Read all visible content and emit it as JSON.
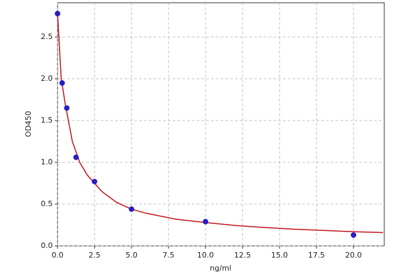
{
  "chart_data": {
    "type": "scatter",
    "x_label": "ng/ml",
    "y_label": "OD450",
    "xlim": [
      0,
      22.08
    ],
    "ylim": [
      0,
      2.91
    ],
    "xticks": [
      {
        "value": 0,
        "label": "0.0"
      },
      2.5,
      {
        "value": 5,
        "label": "5.0"
      },
      7.5,
      {
        "value": 10,
        "label": "10.0"
      },
      12.5,
      {
        "value": 15,
        "label": "15.0"
      },
      17.5,
      {
        "value": 20,
        "label": "20.0"
      }
    ],
    "yticks": [
      {
        "value": 0,
        "label": "0.0"
      },
      0.5,
      {
        "value": 1,
        "label": "1.0"
      },
      1.5,
      {
        "value": 2,
        "label": "2.0"
      },
      2.5
    ],
    "grid": true,
    "series": [
      {
        "mode": "line",
        "color": "#c0141c",
        "x": [
          0,
          0.25,
          0.5,
          1,
          1.5,
          2,
          3,
          4,
          5,
          6,
          8,
          10,
          12,
          14,
          16,
          18,
          20,
          22
        ],
        "values": [
          2.78,
          2.0,
          1.72,
          1.25,
          1.0,
          0.85,
          0.65,
          0.52,
          0.44,
          0.39,
          0.32,
          0.28,
          0.245,
          0.22,
          0.2,
          0.185,
          0.17,
          0.16
        ]
      },
      {
        "mode": "markers",
        "color": "#2a1fbf",
        "x": [
          0,
          0.3125,
          0.625,
          1.25,
          2.5,
          5,
          10,
          20
        ],
        "values": [
          2.78,
          1.95,
          1.65,
          1.06,
          0.77,
          0.44,
          0.29,
          0.13
        ]
      }
    ]
  }
}
